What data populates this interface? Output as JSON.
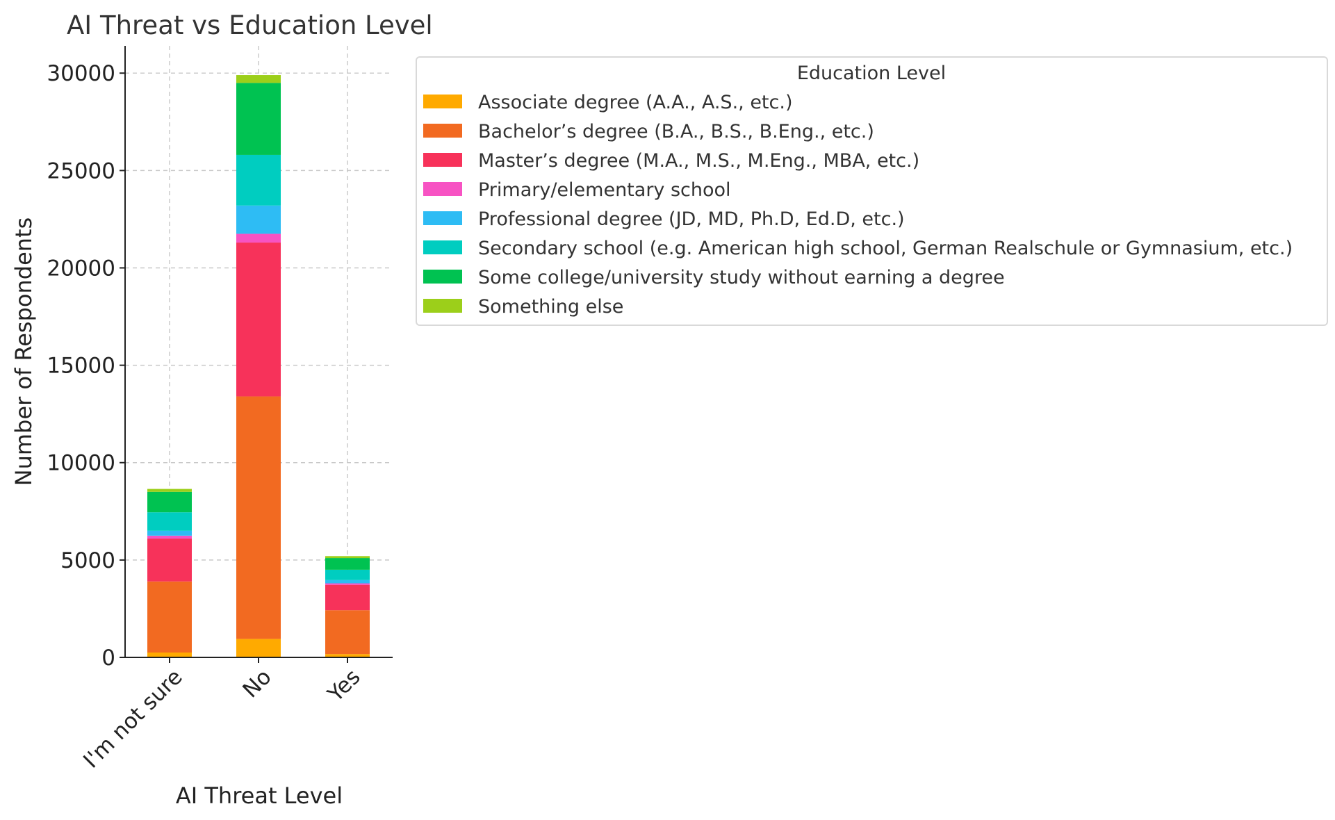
{
  "chart_data": {
    "type": "bar",
    "stacked": true,
    "title": "AI Threat vs Education Level",
    "xlabel": "AI Threat Level",
    "ylabel": "Number of Respondents",
    "categories": [
      "I'm not sure",
      "No",
      "Yes"
    ],
    "ylim": [
      0,
      31400
    ],
    "yticks": [
      0,
      5000,
      10000,
      15000,
      20000,
      25000,
      30000
    ],
    "grid": true,
    "legend": {
      "title": "Education Level",
      "position": "right of plot, top"
    },
    "series": [
      {
        "name": "Associate degree (A.A., A.S., etc.)",
        "color": "#ffaa00",
        "values": [
          250,
          950,
          170
        ]
      },
      {
        "name": "Bachelor’s degree (B.A., B.S., B.Eng., etc.)",
        "color": "#f26a21",
        "values": [
          3650,
          12450,
          2250
        ]
      },
      {
        "name": "Master’s degree (M.A., M.S., M.Eng., MBA, etc.)",
        "color": "#f7325a",
        "values": [
          2200,
          7900,
          1300
        ]
      },
      {
        "name": "Primary/elementary school",
        "color": "#f753c3",
        "values": [
          150,
          450,
          80
        ]
      },
      {
        "name": "Professional degree (JD, MD, Ph.D, Ed.D, etc.)",
        "color": "#2ebcf4",
        "values": [
          250,
          1450,
          170
        ]
      },
      {
        "name": "Secondary school (e.g. American high school, German Realschule or Gymnasium, etc.)",
        "color": "#00cdc0",
        "values": [
          950,
          2600,
          530
        ]
      },
      {
        "name": "Some college/university study without earning a degree",
        "color": "#00c251",
        "values": [
          1050,
          3700,
          600
        ]
      },
      {
        "name": "Something else",
        "color": "#9ccf1a",
        "values": [
          150,
          400,
          100
        ]
      }
    ]
  }
}
